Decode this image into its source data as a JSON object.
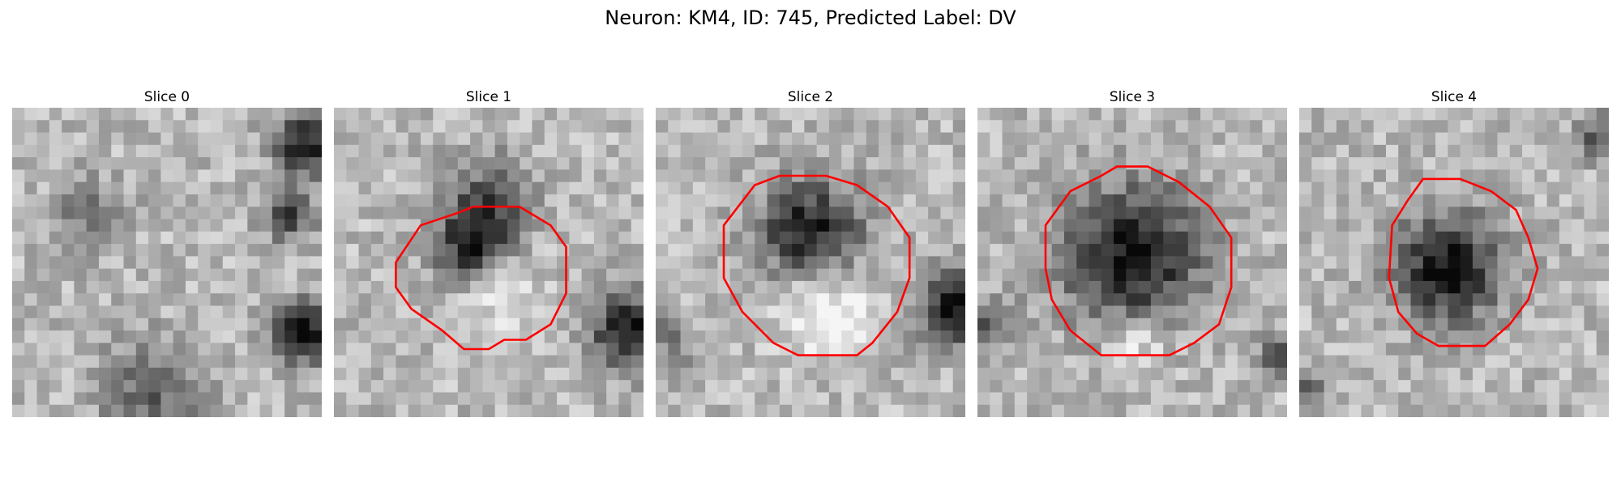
{
  "figure": {
    "title": "Neuron: KM4, ID: 745, Predicted Label: DV"
  },
  "contour_color": "#ff0000",
  "slices": [
    {
      "title": "Slice 0",
      "dark_spots": [
        [
          0.95,
          0.12,
          0.1,
          1.0
        ],
        [
          0.9,
          0.35,
          0.08,
          0.7
        ],
        [
          0.95,
          0.73,
          0.1,
          1.0
        ],
        [
          0.45,
          0.92,
          0.16,
          0.5
        ],
        [
          0.25,
          0.35,
          0.12,
          0.35
        ]
      ]
    },
    {
      "title": "Slice 1",
      "dark_spots": [
        [
          0.45,
          0.45,
          0.12,
          0.9
        ],
        [
          0.5,
          0.3,
          0.14,
          0.55
        ],
        [
          0.95,
          0.72,
          0.12,
          1.0
        ]
      ],
      "bright_spots": [
        [
          0.52,
          0.58,
          0.12,
          0.4
        ]
      ]
    },
    {
      "title": "Slice 2",
      "dark_spots": [
        [
          0.5,
          0.4,
          0.16,
          0.95
        ],
        [
          0.97,
          0.65,
          0.12,
          1.0
        ],
        [
          0.05,
          0.75,
          0.08,
          0.4
        ]
      ],
      "bright_spots": [
        [
          0.55,
          0.65,
          0.14,
          0.55
        ]
      ]
    },
    {
      "title": "Slice 3",
      "dark_spots": [
        [
          0.5,
          0.48,
          0.22,
          1.0
        ],
        [
          0.05,
          0.7,
          0.08,
          0.55
        ],
        [
          0.97,
          0.8,
          0.07,
          0.5
        ]
      ],
      "bright_spots": [
        [
          0.52,
          0.75,
          0.1,
          0.4
        ]
      ]
    },
    {
      "title": "Slice 4",
      "dark_spots": [
        [
          0.48,
          0.52,
          0.17,
          1.0
        ],
        [
          0.97,
          0.1,
          0.07,
          0.6
        ],
        [
          0.03,
          0.92,
          0.06,
          0.5
        ]
      ]
    }
  ]
}
